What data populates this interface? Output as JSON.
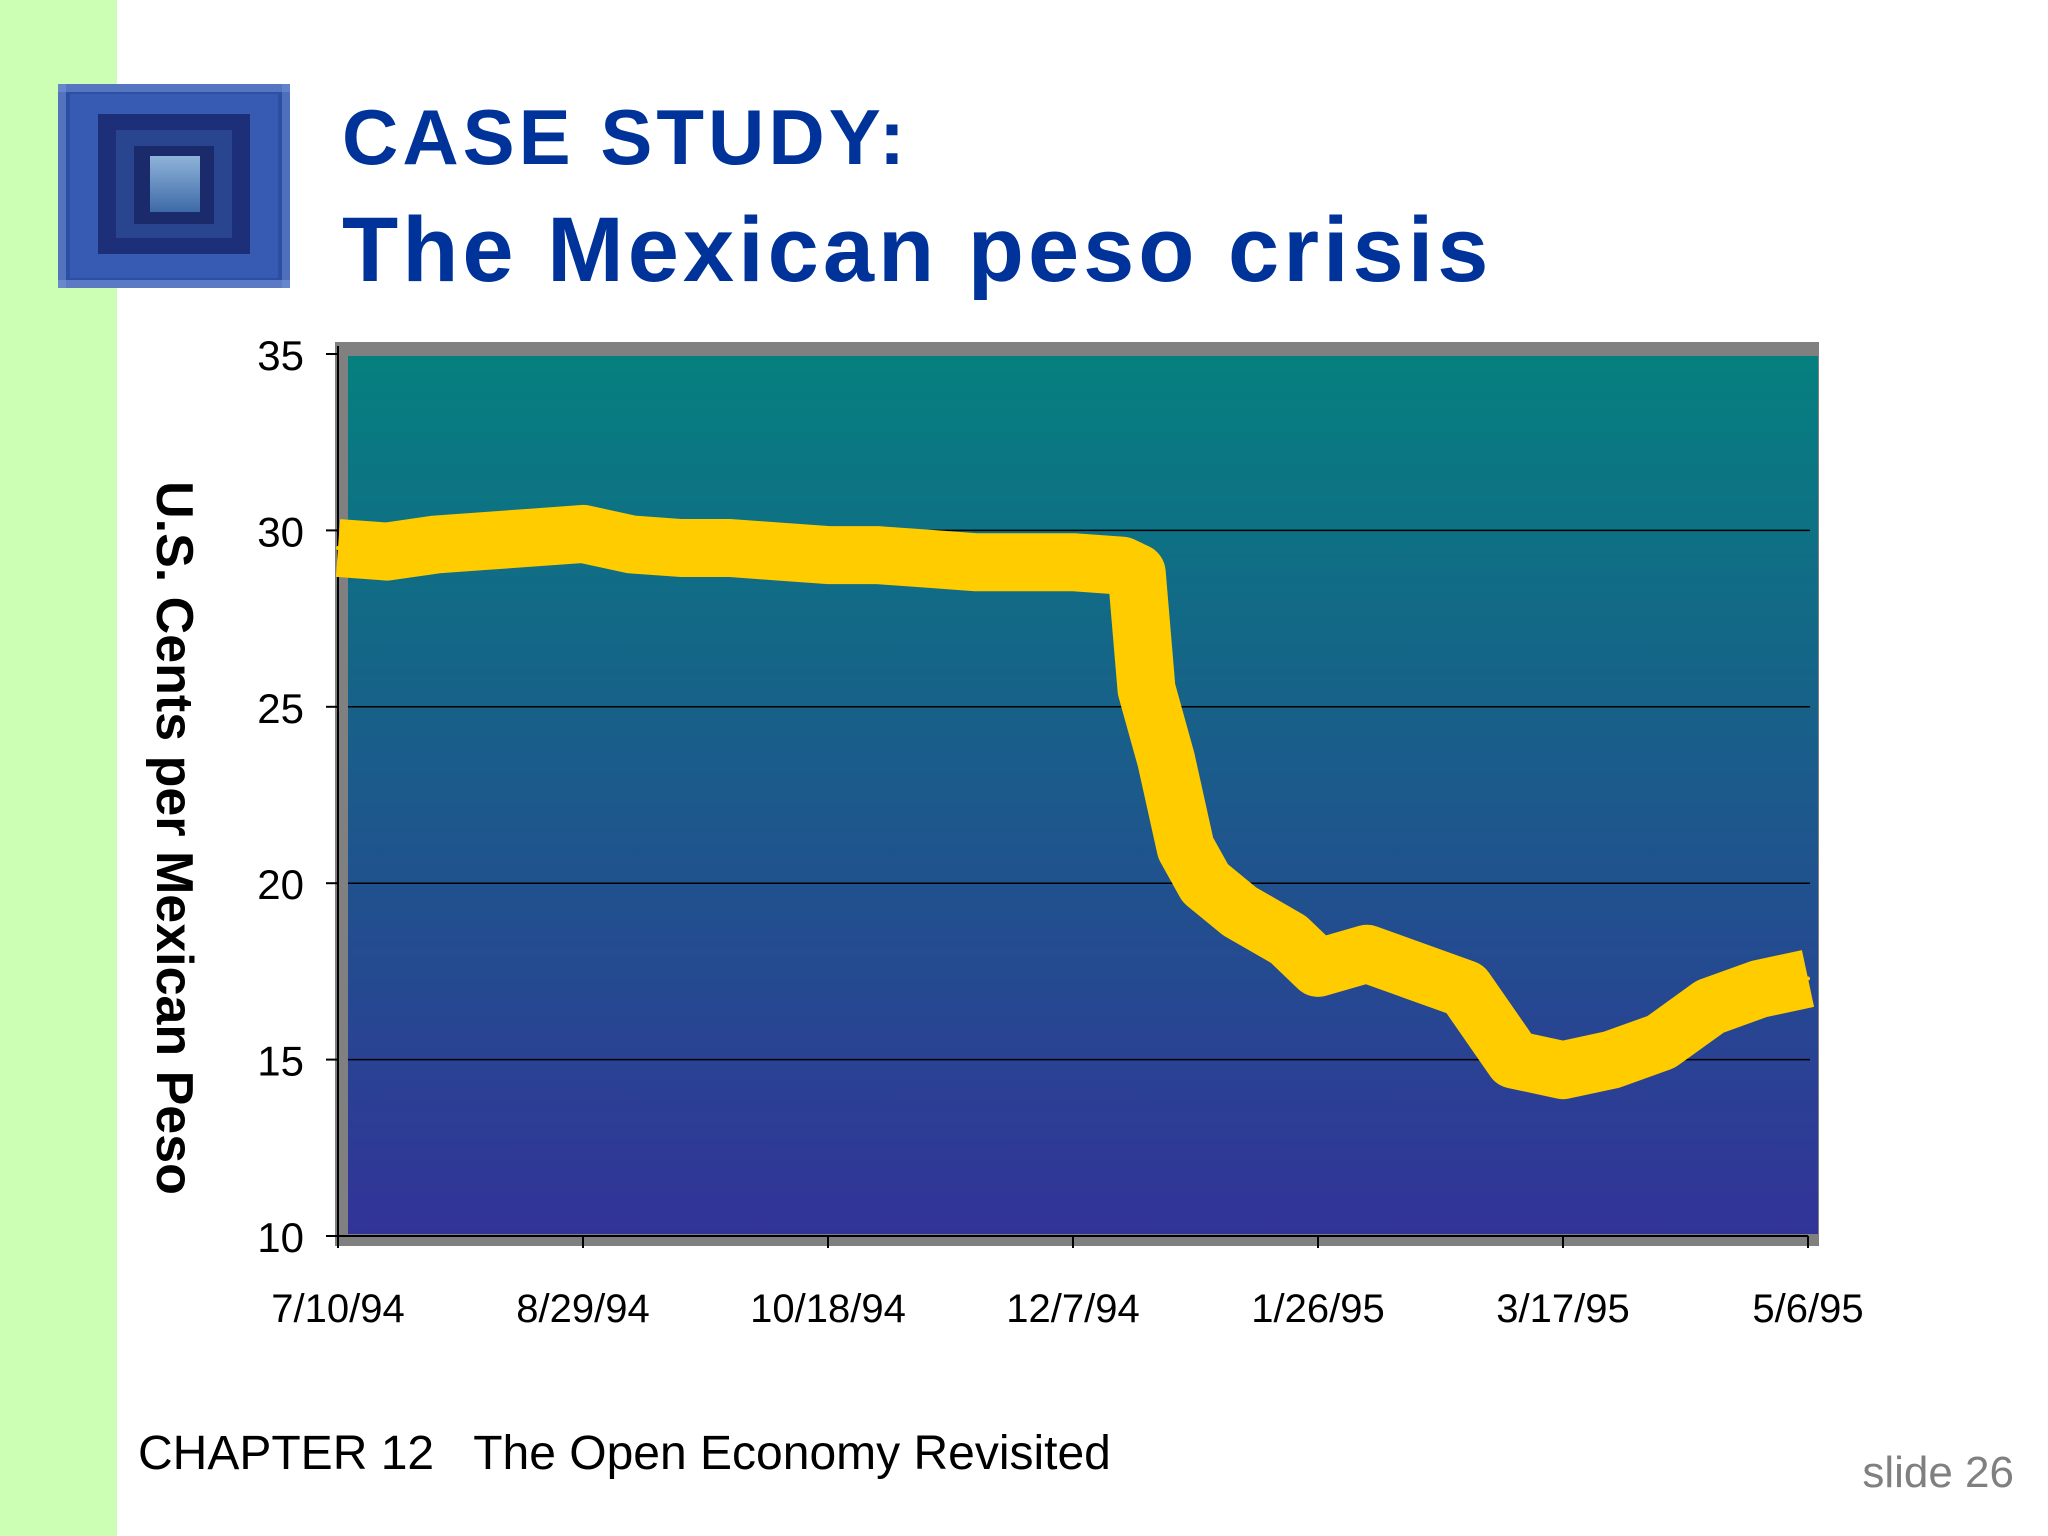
{
  "slide": {
    "title_line1": "CASE STUDY:",
    "title_line2": "The Mexican peso crisis",
    "footer_chapter": "CHAPTER 12   The Open Economy Revisited",
    "footer_slide": "slide 26",
    "colors": {
      "title": "#003399",
      "left_bar": "#ccffb3",
      "plot_top": "#05807f",
      "plot_bottom": "#323398",
      "series": "#ffcc00",
      "plot_border": "#808080"
    },
    "icons": [
      "logo-square-image"
    ]
  },
  "chart_data": {
    "type": "line",
    "ylabel": "U.S. Cents per Mexican Peso",
    "ylim": [
      10,
      35
    ],
    "yticks": [
      "10",
      "15",
      "20",
      "25",
      "30",
      "35"
    ],
    "xticks": [
      "7/10/94",
      "8/29/94",
      "10/18/94",
      "12/7/94",
      "1/26/95",
      "3/17/95",
      "5/6/95"
    ],
    "xlim": [
      "7/10/94",
      "5/6/95"
    ],
    "grid": "horizontal",
    "legend": "none",
    "series": [
      {
        "values": [
          [
            "7/10/94",
            29.5
          ],
          [
            "7/20/94",
            29.4
          ],
          [
            "7/30/94",
            29.6
          ],
          [
            "8/9/94",
            29.7
          ],
          [
            "8/19/94",
            29.8
          ],
          [
            "8/29/94",
            29.9
          ],
          [
            "9/8/94",
            29.6
          ],
          [
            "9/18/94",
            29.5
          ],
          [
            "9/28/94",
            29.5
          ],
          [
            "10/8/94",
            29.4
          ],
          [
            "10/18/94",
            29.3
          ],
          [
            "10/28/94",
            29.3
          ],
          [
            "11/7/94",
            29.2
          ],
          [
            "11/17/94",
            29.1
          ],
          [
            "11/27/94",
            29.1
          ],
          [
            "12/7/94",
            29.1
          ],
          [
            "12/17/94",
            29.0
          ],
          [
            "12/20/94",
            28.8
          ],
          [
            "12/22/94",
            25.5
          ],
          [
            "12/26/94",
            23.5
          ],
          [
            "12/30/94",
            21.0
          ],
          [
            "1/3/95",
            20.0
          ],
          [
            "1/10/95",
            19.2
          ],
          [
            "1/20/95",
            18.4
          ],
          [
            "1/26/95",
            17.6
          ],
          [
            "2/5/95",
            18.0
          ],
          [
            "2/15/95",
            17.5
          ],
          [
            "2/25/95",
            17.0
          ],
          [
            "3/7/95",
            15.0
          ],
          [
            "3/17/95",
            14.7
          ],
          [
            "3/27/95",
            15.0
          ],
          [
            "4/6/95",
            15.5
          ],
          [
            "4/16/95",
            16.5
          ],
          [
            "4/26/95",
            17.0
          ],
          [
            "5/6/95",
            17.3
          ]
        ]
      }
    ]
  }
}
